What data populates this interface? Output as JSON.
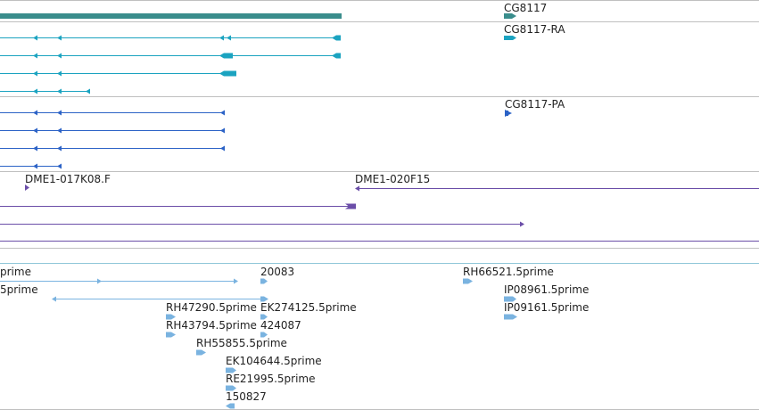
{
  "colors": {
    "gene": "#3a8d8c",
    "transcript_ra": "#1ba3c0",
    "transcript_pa": "#2b62c6",
    "bac_end": "#6b4ea8",
    "cdna": "#7ab3e0",
    "divider": "#c0c0c0",
    "divider_cdna": "#8fc7d8"
  },
  "tracks": {
    "genes": {
      "labels": [
        "CG8117"
      ]
    },
    "transcripts": {
      "labels": [
        "CG8117-RA"
      ]
    },
    "proteins": {
      "labels": [
        "CG8117-PA"
      ]
    },
    "bac_ends": {
      "labels": [
        "DME1-017K08.F",
        "DME1-020F15"
      ]
    },
    "cdna_reads": {
      "labels": [
        "prime",
        "5prime",
        "20083",
        "RH66521.5prime",
        "IP08961.5prime",
        "IP09161.5prime",
        "RH47290.5prime",
        "EK274125.5prime",
        "RH43794.5prime",
        "424087",
        "RH55855.5prime",
        "EK104644.5prime",
        "RE21995.5prime",
        "150827"
      ]
    }
  }
}
